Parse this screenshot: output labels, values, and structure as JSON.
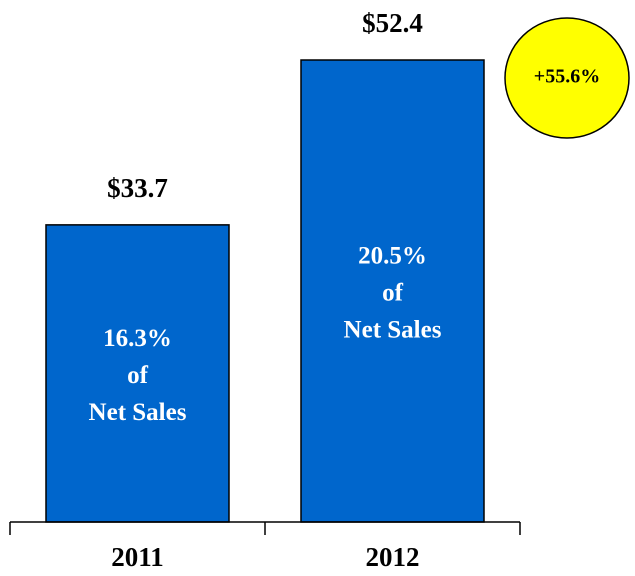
{
  "chart_data": {
    "type": "bar",
    "categories": [
      "2011",
      "2012"
    ],
    "values": [
      33.7,
      52.4
    ],
    "value_labels": [
      "$33.7",
      "$52.4"
    ],
    "color": "#0066cc",
    "bar_annotations": [
      [
        "16.3%",
        "of",
        "Net Sales"
      ],
      [
        "20.5%",
        "of",
        "Net Sales"
      ]
    ],
    "callout": "+55.6%",
    "callout_color": "#ffff00"
  }
}
